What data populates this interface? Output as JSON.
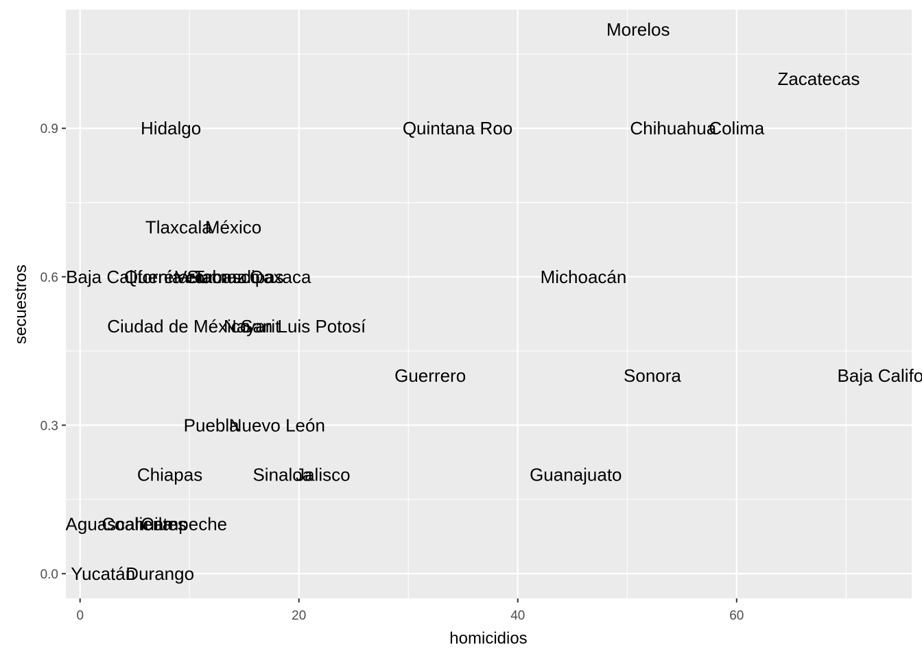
{
  "chart_data": {
    "type": "scatter",
    "xlabel": "homicidios",
    "ylabel": "secuestros",
    "xlim": [
      -1.3,
      76
    ],
    "ylim": [
      -0.05,
      1.14
    ],
    "x_ticks": [
      0,
      20,
      40,
      60
    ],
    "y_ticks": [
      0.0,
      0.3,
      0.6,
      0.9
    ],
    "x_tick_labels": [
      "0",
      "20",
      "40",
      "60"
    ],
    "y_tick_labels": [
      "0.0",
      "0.3",
      "0.6",
      "0.9"
    ],
    "grid": true,
    "legend": "none",
    "colors": {
      "panel": "#ebebeb",
      "grid": "#ffffff",
      "text": "#000000",
      "tick_text": "#4d4d4d",
      "tick_mark": "#333333"
    },
    "points": [
      {
        "label": "Morelos",
        "x": 51,
        "y": 1.1
      },
      {
        "label": "Zacatecas",
        "x": 67.5,
        "y": 1.0
      },
      {
        "label": "Hidalgo",
        "x": 8.3,
        "y": 0.9
      },
      {
        "label": "Quintana Roo",
        "x": 34.5,
        "y": 0.9
      },
      {
        "label": "Chihuahua",
        "x": 54.2,
        "y": 0.9
      },
      {
        "label": "Colima",
        "x": 60,
        "y": 0.9
      },
      {
        "label": "Tlaxcala",
        "x": 9,
        "y": 0.7
      },
      {
        "label": "México",
        "x": 14,
        "y": 0.7
      },
      {
        "label": "Baja California Sur",
        "x": 5.5,
        "y": 0.6
      },
      {
        "label": "Querétaro",
        "x": 7.7,
        "y": 0.6
      },
      {
        "label": "Veracruz",
        "x": 11.9,
        "y": 0.6
      },
      {
        "label": "Tabasco",
        "x": 13.4,
        "y": 0.6
      },
      {
        "label": "Tamaulipas",
        "x": 14.5,
        "y": 0.6
      },
      {
        "label": "Oaxaca",
        "x": 18.3,
        "y": 0.6
      },
      {
        "label": "Michoacán",
        "x": 46,
        "y": 0.6
      },
      {
        "label": "Ciudad de México",
        "x": 9,
        "y": 0.5
      },
      {
        "label": "Nayarit",
        "x": 15.7,
        "y": 0.5
      },
      {
        "label": "San Luis Potosí",
        "x": 20.4,
        "y": 0.5
      },
      {
        "label": "Guerrero",
        "x": 32,
        "y": 0.4
      },
      {
        "label": "Sonora",
        "x": 52.3,
        "y": 0.4
      },
      {
        "label": "Baja California",
        "x": 74.5,
        "y": 0.4
      },
      {
        "label": "Puebla",
        "x": 12,
        "y": 0.3
      },
      {
        "label": "Nuevo León",
        "x": 18,
        "y": 0.3
      },
      {
        "label": "Chiapas",
        "x": 8.2,
        "y": 0.2
      },
      {
        "label": "Sinaloa",
        "x": 18.5,
        "y": 0.2
      },
      {
        "label": "Jalisco",
        "x": 22.2,
        "y": 0.2
      },
      {
        "label": "Guanajuato",
        "x": 45.3,
        "y": 0.2
      },
      {
        "label": "Aguascalientes",
        "x": 4.2,
        "y": 0.1
      },
      {
        "label": "Coahuila",
        "x": 5.2,
        "y": 0.1
      },
      {
        "label": "Campeche",
        "x": 9.5,
        "y": 0.1
      },
      {
        "label": "Yucatán",
        "x": 2.1,
        "y": 0.0
      },
      {
        "label": "Durango",
        "x": 7.3,
        "y": 0.0
      }
    ]
  }
}
